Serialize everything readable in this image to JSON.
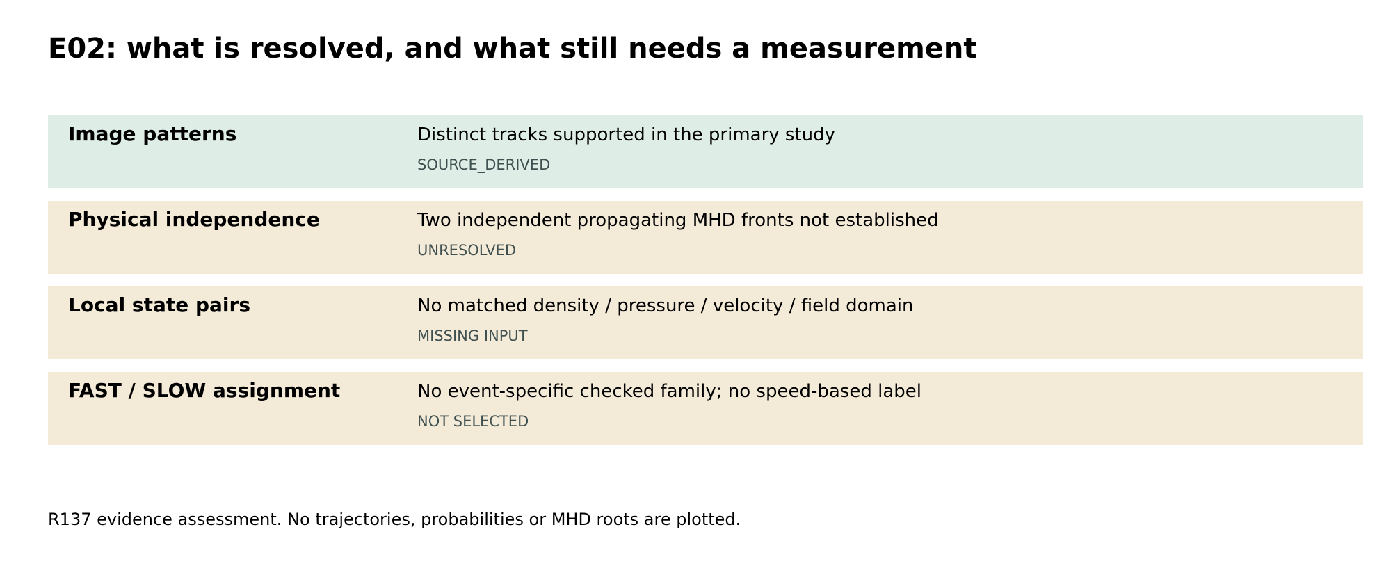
{
  "title": "E02: what is resolved, and what still needs a measurement",
  "colors": {
    "resolved_row": "#deede6",
    "open_row": "#f3ead8",
    "status_text": "#3f5050"
  },
  "rows": [
    {
      "label": "Image patterns",
      "description": "Distinct tracks supported in the primary study",
      "status": "SOURCE_DERIVED",
      "state": "resolved"
    },
    {
      "label": "Physical independence",
      "description": "Two independent propagating MHD fronts not established",
      "status": "UNRESOLVED",
      "state": "open"
    },
    {
      "label": "Local state pairs",
      "description": "No matched density / pressure / velocity / field domain",
      "status": "MISSING INPUT",
      "state": "open"
    },
    {
      "label": "FAST / SLOW assignment",
      "description": "No event-specific checked family; no speed-based label",
      "status": "NOT SELECTED",
      "state": "open"
    }
  ],
  "footer": "R137 evidence assessment. No trajectories, probabilities or MHD roots are plotted."
}
